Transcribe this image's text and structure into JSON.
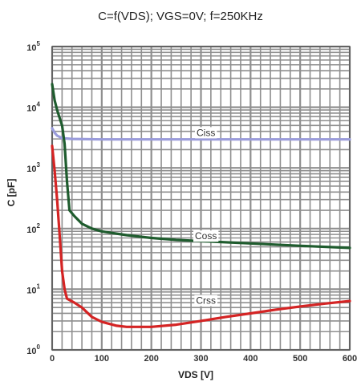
{
  "chart_data": {
    "type": "line",
    "title": "C=f(VDS); VGS=0V; f=250KHz",
    "xlabel": "VDS [V]",
    "ylabel": "C [pF]",
    "xlim": [
      0,
      600
    ],
    "ylim": [
      1,
      100000
    ],
    "yscale": "log",
    "grid": true,
    "x_ticks": [
      0,
      100,
      200,
      300,
      400,
      500,
      600
    ],
    "y_ticks": [
      1,
      10,
      100,
      1000,
      10000,
      100000
    ],
    "y_tick_labels": [
      {
        "base": "10",
        "exp": "0"
      },
      {
        "base": "10",
        "exp": "1"
      },
      {
        "base": "10",
        "exp": "2"
      },
      {
        "base": "10",
        "exp": "3"
      },
      {
        "base": "10",
        "exp": "4"
      },
      {
        "base": "10",
        "exp": "5"
      }
    ],
    "series": [
      {
        "name": "Ciss",
        "color": "#9a9cdb",
        "label_at": [
          310,
          3800
        ],
        "points": [
          [
            0,
            4500
          ],
          [
            5,
            3800
          ],
          [
            10,
            3400
          ],
          [
            20,
            3100
          ],
          [
            40,
            3000
          ],
          [
            100,
            2950
          ],
          [
            200,
            2950
          ],
          [
            300,
            2950
          ],
          [
            400,
            2950
          ],
          [
            500,
            2950
          ],
          [
            600,
            2950
          ]
        ]
      },
      {
        "name": "Coss",
        "color": "#1f5c2e",
        "label_at": [
          310,
          75
        ],
        "points": [
          [
            0,
            24000
          ],
          [
            5,
            13000
          ],
          [
            10,
            9000
          ],
          [
            20,
            5000
          ],
          [
            25,
            2500
          ],
          [
            30,
            600
          ],
          [
            35,
            200
          ],
          [
            45,
            160
          ],
          [
            60,
            120
          ],
          [
            80,
            100
          ],
          [
            100,
            90
          ],
          [
            150,
            78
          ],
          [
            200,
            70
          ],
          [
            250,
            65
          ],
          [
            300,
            62
          ],
          [
            400,
            57
          ],
          [
            500,
            52
          ],
          [
            600,
            48
          ]
        ]
      },
      {
        "name": "Crss",
        "color": "#d42424",
        "label_at": [
          310,
          6.5
        ],
        "points": [
          [
            0,
            2300
          ],
          [
            5,
            900
          ],
          [
            10,
            300
          ],
          [
            15,
            80
          ],
          [
            20,
            20
          ],
          [
            25,
            10
          ],
          [
            30,
            7
          ],
          [
            45,
            6
          ],
          [
            60,
            5
          ],
          [
            80,
            3.5
          ],
          [
            100,
            2.9
          ],
          [
            130,
            2.5
          ],
          [
            150,
            2.4
          ],
          [
            200,
            2.4
          ],
          [
            250,
            2.6
          ],
          [
            300,
            3.0
          ],
          [
            350,
            3.5
          ],
          [
            400,
            4.0
          ],
          [
            450,
            4.6
          ],
          [
            500,
            5.2
          ],
          [
            550,
            5.8
          ],
          [
            600,
            6.4
          ]
        ]
      }
    ]
  }
}
